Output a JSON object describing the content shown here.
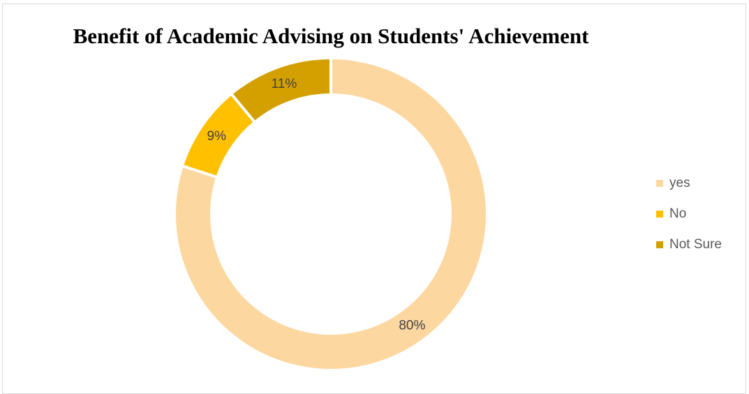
{
  "chart_data": {
    "type": "pie",
    "variant": "donut",
    "title": "Benefit of Academic Advising on Students' Achievement",
    "categories": [
      "yes",
      "No",
      "Not Sure"
    ],
    "values": [
      80,
      9,
      11
    ],
    "data_labels": [
      "80%",
      "9%",
      "11%"
    ],
    "colors": [
      "#FDD7A0",
      "#FFC000",
      "#D4A000"
    ],
    "legend_position": "right"
  }
}
